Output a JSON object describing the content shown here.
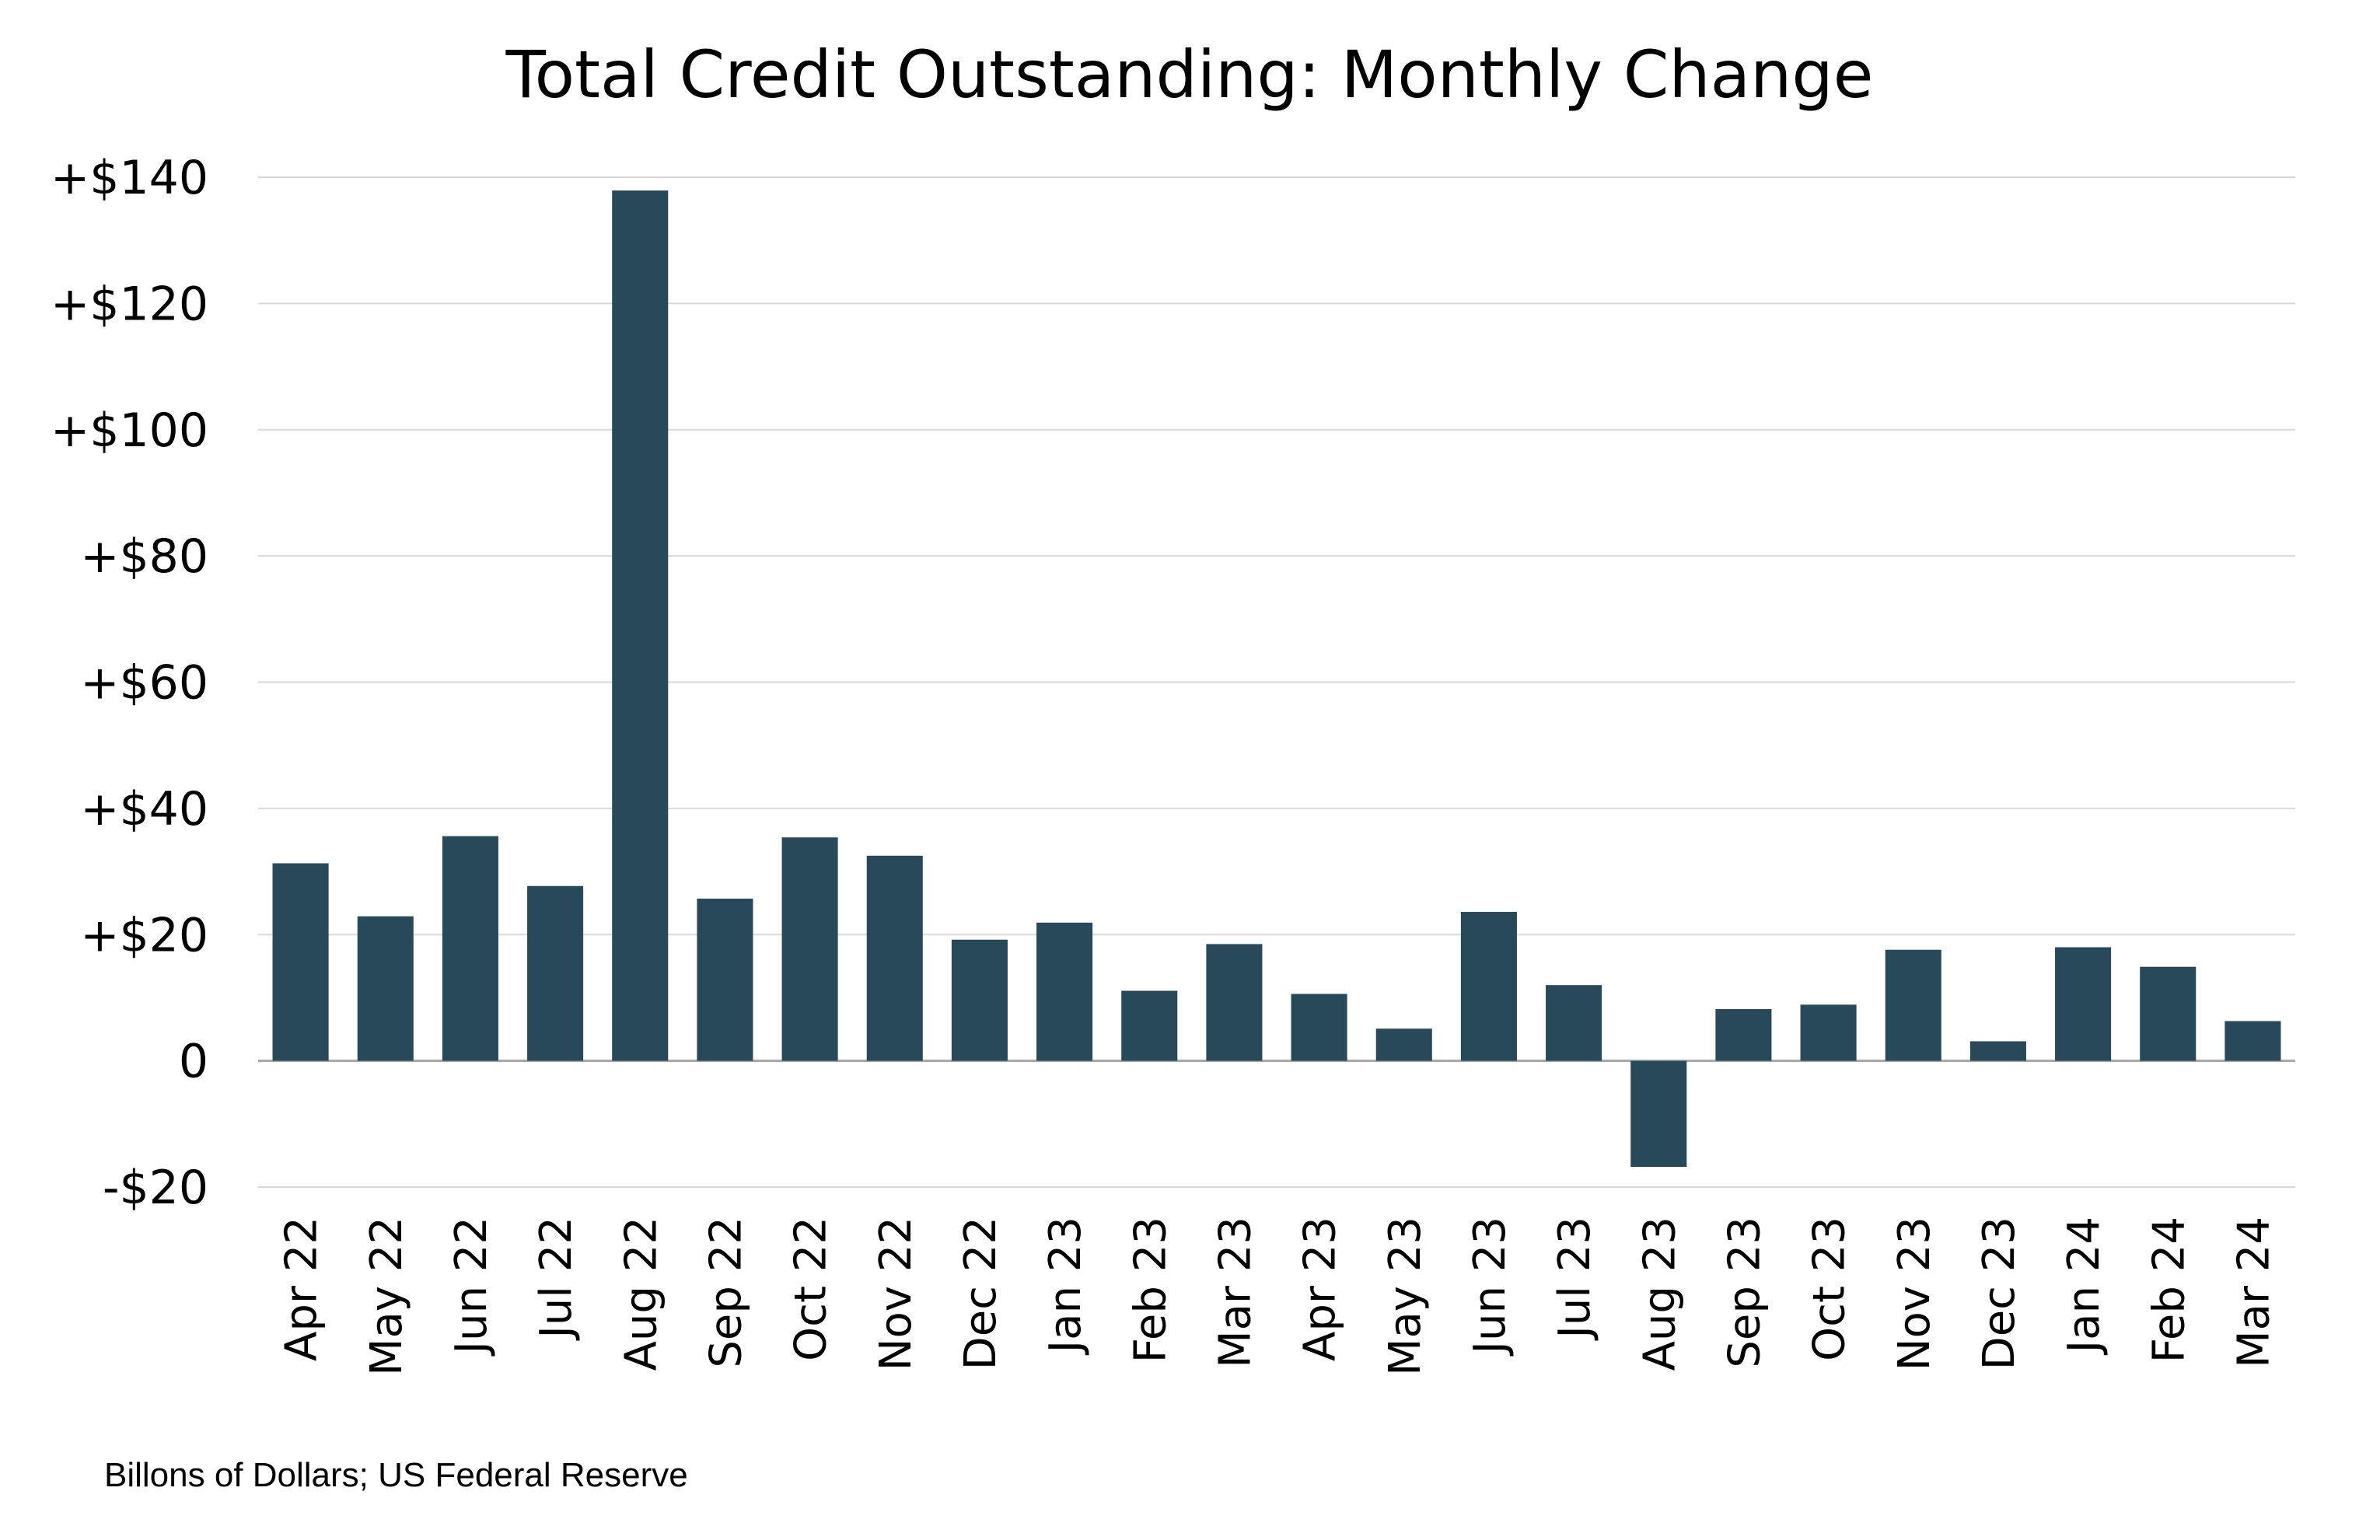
{
  "chart_data": {
    "type": "bar",
    "title": "Total Credit Outstanding: Monthly Change",
    "source_note": "Billons of Dollars; US Federal Reserve",
    "categories": [
      "Apr 22",
      "May 22",
      "Jun 22",
      "Jul 22",
      "Aug 22",
      "Sep 22",
      "Oct 22",
      "Nov 22",
      "Dec 22",
      "Jan 23",
      "Feb 23",
      "Mar 23",
      "Apr 23",
      "May 23",
      "Jun 23",
      "Jul 23",
      "Aug 23",
      "Sep 23",
      "Oct 23",
      "Nov 23",
      "Dec 23",
      "Jan 24",
      "Feb 24",
      "Mar 24"
    ],
    "values": [
      31.3,
      22.9,
      35.6,
      27.7,
      137.9,
      25.7,
      35.4,
      32.5,
      19.2,
      21.9,
      11.1,
      18.5,
      10.6,
      5.1,
      23.6,
      12.0,
      -16.8,
      8.2,
      8.9,
      17.6,
      3.1,
      18.0,
      14.9,
      6.3
    ],
    "ylim": [
      -20,
      140
    ],
    "yticks": [
      -20,
      0,
      20,
      40,
      60,
      80,
      100,
      120,
      140
    ],
    "ytick_labels": [
      "-$20",
      "0",
      "+$20",
      "+$40",
      "+$60",
      "+$80",
      "+$100",
      "+$120",
      "+$140"
    ],
    "xlabel": "",
    "ylabel": "",
    "grid": true,
    "legend": "none",
    "colors": {
      "bar": "#27495a",
      "grid": "#d9d9d9",
      "axis": "#a6a6a6"
    }
  }
}
